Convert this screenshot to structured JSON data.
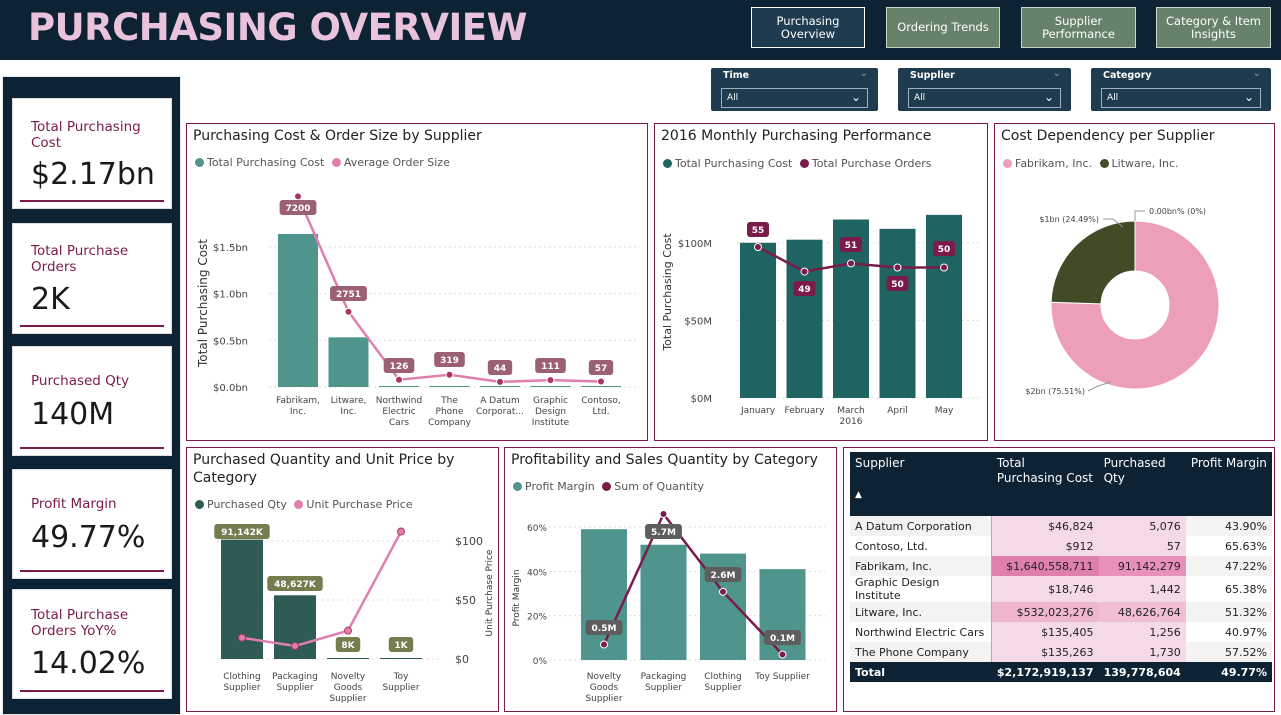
{
  "header": {
    "title": "PURCHASING OVERVIEW",
    "nav": [
      "Purchasing Overview",
      "Ordering Trends",
      "Supplier Performance",
      "Category & Item Insights"
    ]
  },
  "kpis": [
    {
      "label": "Total Purchasing Cost",
      "value": "$2.17bn"
    },
    {
      "label": "Total Purchase Orders",
      "value": "2K"
    },
    {
      "label": "Purchased Qty",
      "value": "140M"
    },
    {
      "label": "Profit Margin",
      "value": "49.77%"
    },
    {
      "label": "Total Purchase Orders YoY%",
      "value": "14.02%"
    }
  ],
  "filters": [
    {
      "label": "Time",
      "value": "All"
    },
    {
      "label": "Supplier",
      "value": "All"
    },
    {
      "label": "Category",
      "value": "All"
    }
  ],
  "colors": {
    "teal": "#4f958d",
    "darkteal": "#1f6460",
    "maroon": "#7a1b4a",
    "pink": "#e07fae",
    "olive": "#414c26",
    "lightpink": "#ed9ebb"
  },
  "chart_data": [
    {
      "type": "bar",
      "title": "Purchasing Cost & Order Size by Supplier",
      "legend": [
        "Total Purchasing Cost",
        "Average Order Size"
      ],
      "ylabel": "Total Purchasing Cost",
      "yticks": [
        "$1.5bn",
        "$1.0bn",
        "$0.5bn",
        "$0.0bn"
      ],
      "ylim": [
        0,
        1.8
      ],
      "categories": [
        "Fabrikam, Inc.",
        "Litware, Inc.",
        "Northwind Electric Cars",
        "The Phone Company",
        "A Datum Corporat...",
        "Graphic Design Institute",
        "Contoso, Ltd."
      ],
      "cat_lines": [
        [
          "Fabrikam,",
          "Inc."
        ],
        [
          "Litware,",
          "Inc."
        ],
        [
          "Northwind",
          "Electric",
          "Cars"
        ],
        [
          "The",
          "Phone",
          "Company"
        ],
        [
          "A Datum",
          "Corporat..."
        ],
        [
          "Graphic",
          "Design",
          "Institute"
        ],
        [
          "Contoso,",
          "Ltd."
        ]
      ],
      "series": [
        {
          "name": "Total Purchasing Cost",
          "values": [
            1.64,
            0.532,
            0.0001,
            0.0001,
            5e-05,
            2e-05,
            1e-06
          ]
        },
        {
          "name": "Average Order Size",
          "values": [
            7200,
            2751,
            126,
            319,
            44,
            111,
            57
          ]
        }
      ],
      "labels": [
        "7200",
        "2751",
        "126",
        "319",
        "44",
        "111",
        "57"
      ]
    },
    {
      "type": "bar",
      "title": "2016 Monthly Purchasing Performance",
      "legend": [
        "Total Purchasing Cost",
        "Total Purchase Orders"
      ],
      "ylabel": "Total Purchasing Cost",
      "yticks": [
        "$100M",
        "$50M",
        "$0M"
      ],
      "ylim": [
        0,
        125
      ],
      "categories": [
        "January",
        "February",
        "March 2016",
        "April",
        "May"
      ],
      "cat_lines": [
        [
          "January"
        ],
        [
          "February"
        ],
        [
          "March",
          "2016"
        ],
        [
          "April"
        ],
        [
          "May"
        ]
      ],
      "series": [
        {
          "name": "Total Purchasing Cost",
          "values": [
            100,
            102,
            115,
            109,
            118
          ]
        },
        {
          "name": "Total Purchase Orders",
          "values": [
            55,
            49,
            51,
            50,
            50
          ]
        }
      ],
      "labels": [
        "55",
        "49",
        "51",
        "50",
        "50"
      ]
    },
    {
      "type": "pie",
      "title": "Cost Dependency per Supplier",
      "legend": [
        "Fabrikam, Inc.",
        "Litware, Inc."
      ],
      "slices": [
        {
          "name": "Fabrikam, Inc.",
          "value": 75.51,
          "label": "$2bn (75.51%)"
        },
        {
          "name": "Litware, Inc.",
          "value": 24.49,
          "label": "$1bn (24.49%)"
        },
        {
          "name": "other",
          "value": 0,
          "label": "0.00bn% (0%)"
        }
      ]
    },
    {
      "type": "bar",
      "title": "Purchased Quantity and Unit Price by Category",
      "legend": [
        "Purchased Qty",
        "Unit Purchase Price"
      ],
      "ylabel_right": "Unit Purchase Price",
      "yticks_right": [
        "$100",
        "$50",
        "$0"
      ],
      "categories": [
        "Clothing Supplier",
        "Packaging Supplier",
        "Novelty Goods Supplier",
        "Toy Supplier"
      ],
      "cat_lines": [
        [
          "Clothing",
          "Supplier"
        ],
        [
          "Packaging",
          "Supplier"
        ],
        [
          "Novelty",
          "Goods",
          "Supplier"
        ],
        [
          "Toy",
          "Supplier"
        ]
      ],
      "series": [
        {
          "name": "Purchased Qty",
          "values": [
            91142,
            48627,
            8,
            1
          ]
        },
        {
          "name": "Unit Purchase Price",
          "values": [
            18,
            11,
            24,
            108
          ]
        }
      ],
      "labels": [
        "91,142K",
        "48,627K",
        "8K",
        "1K"
      ]
    },
    {
      "type": "bar",
      "title": "Profitability and Sales Quantity by Category",
      "legend": [
        "Profit Margin",
        "Sum of Quantity"
      ],
      "ylabel": "Profit Margin",
      "yticks": [
        "60%",
        "40%",
        "20%",
        "0%"
      ],
      "categories": [
        "Novelty Goods Supplier",
        "Packaging Supplier",
        "Clothing Supplier",
        "Toy Supplier"
      ],
      "cat_lines": [
        [
          "Novelty",
          "Goods",
          "Supplier"
        ],
        [
          "Packaging",
          "Supplier"
        ],
        [
          "Clothing",
          "Supplier"
        ],
        [
          "Toy Supplier"
        ]
      ],
      "series": [
        {
          "name": "Profit Margin",
          "values": [
            59,
            52,
            48,
            41
          ]
        },
        {
          "name": "Sum of Quantity",
          "values": [
            0.5,
            5.7,
            2.6,
            0.1
          ]
        }
      ],
      "labels": [
        "0.5M",
        "5.7M",
        "2.6M",
        "0.1M"
      ]
    }
  ],
  "table": {
    "headers": [
      "Supplier",
      "Total Purchasing Cost",
      "Purchased Qty",
      "Profit Margin"
    ],
    "rows": [
      [
        "A Datum Corporation",
        "$46,824",
        "5,076",
        "43.90%"
      ],
      [
        "Contoso, Ltd.",
        "$912",
        "57",
        "65.63%"
      ],
      [
        "Fabrikam, Inc.",
        "$1,640,558,711",
        "91,142,279",
        "47.22%"
      ],
      [
        "Graphic Design Institute",
        "$18,746",
        "1,442",
        "65.38%"
      ],
      [
        "Litware, Inc.",
        "$532,023,276",
        "48,626,764",
        "51.32%"
      ],
      [
        "Northwind Electric Cars",
        "$135,405",
        "1,256",
        "40.97%"
      ],
      [
        "The Phone Company",
        "$135,263",
        "1,730",
        "57.52%"
      ]
    ],
    "total": [
      "Total",
      "$2,172,919,137",
      "139,778,604",
      "49.77%"
    ]
  }
}
